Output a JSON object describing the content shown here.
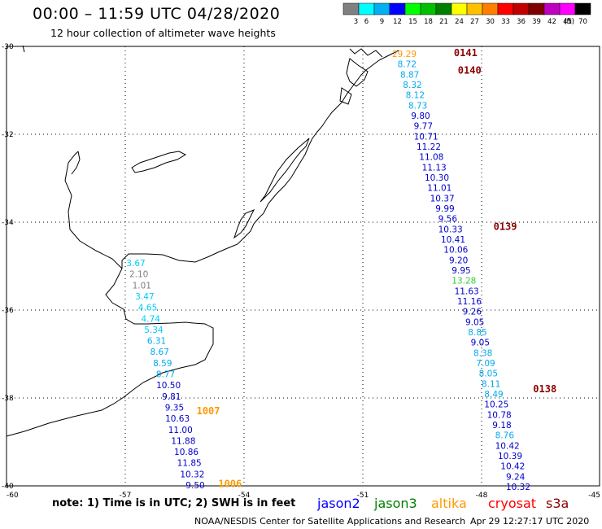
{
  "header": {
    "title": "00:00 – 11:59 UTC 04/28/2020",
    "subtitle": "12 hour collection of altimeter wave heights"
  },
  "scale": {
    "unit": "(ft)",
    "bins": [
      {
        "label": "3",
        "color": "#808080"
      },
      {
        "label": "6",
        "color": "#00ffff"
      },
      {
        "label": "9",
        "color": "#00b0f0"
      },
      {
        "label": "12",
        "color": "#0000ff"
      },
      {
        "label": "15",
        "color": "#00ff00"
      },
      {
        "label": "18",
        "color": "#00c000"
      },
      {
        "label": "21",
        "color": "#008000"
      },
      {
        "label": "24",
        "color": "#ffff00"
      },
      {
        "label": "27",
        "color": "#ffc000"
      },
      {
        "label": "30",
        "color": "#ff8000"
      },
      {
        "label": "33",
        "color": "#ff0000"
      },
      {
        "label": "36",
        "color": "#c00000"
      },
      {
        "label": "39",
        "color": "#800000"
      },
      {
        "label": "42",
        "color": "#c000c0"
      },
      {
        "label": "45",
        "color": "#ff00ff"
      },
      {
        "label": "70",
        "color": "#000000"
      }
    ]
  },
  "axes": {
    "lat_labels": [
      "-30",
      "-32",
      "-34",
      "-36",
      "-38",
      "-40"
    ],
    "lon_labels": [
      "-60",
      "-57",
      "-54",
      "-51",
      "-48",
      "-45"
    ]
  },
  "colors": {
    "gray": "#808080",
    "cyan": "#00ccff",
    "skyblue": "#00aaee",
    "blue": "#0000cc",
    "green": "#33cc33",
    "orange": "#ff9900",
    "darkred": "#8b0000",
    "red": "#ff0000"
  },
  "passes": [
    {
      "label": "0141",
      "lon": -48.7,
      "lat": -30.15,
      "color": "darkred"
    },
    {
      "label": "0140",
      "lon": -48.6,
      "lat": -30.55,
      "color": "darkred"
    },
    {
      "label": "0139",
      "lon": -47.7,
      "lat": -34.1,
      "color": "darkred"
    },
    {
      "label": "0138",
      "lon": -46.7,
      "lat": -37.8,
      "color": "darkred"
    },
    {
      "label": "1007",
      "lon": -55.2,
      "lat": -38.3,
      "color": "orange"
    },
    {
      "label": "1006",
      "lon": -54.65,
      "lat": -39.95,
      "color": "orange"
    }
  ],
  "track_a": [
    {
      "v": "3.67",
      "color": "cyan"
    },
    {
      "v": "2.10",
      "color": "gray"
    },
    {
      "v": "1.01",
      "color": "gray"
    },
    {
      "v": "3.47",
      "color": "cyan"
    },
    {
      "v": "4.65",
      "color": "cyan"
    },
    {
      "v": "4.74",
      "color": "cyan"
    },
    {
      "v": "5.34",
      "color": "cyan"
    },
    {
      "v": "6.31",
      "color": "skyblue"
    },
    {
      "v": "8.67",
      "color": "skyblue"
    },
    {
      "v": "8.59",
      "color": "skyblue"
    },
    {
      "v": "8.77",
      "color": "skyblue"
    },
    {
      "v": "10.50",
      "color": "blue"
    },
    {
      "v": "9.81",
      "color": "blue"
    },
    {
      "v": "9.35",
      "color": "blue"
    },
    {
      "v": "10.63",
      "color": "blue"
    },
    {
      "v": "11.00",
      "color": "blue"
    },
    {
      "v": "11.88",
      "color": "blue"
    },
    {
      "v": "10.86",
      "color": "blue"
    },
    {
      "v": "11.85",
      "color": "blue"
    },
    {
      "v": "10.32",
      "color": "blue"
    },
    {
      "v": "9.50",
      "color": "blue"
    }
  ],
  "track_b": [
    {
      "v": "29.29",
      "color": "orange"
    },
    {
      "v": "8.72",
      "color": "skyblue"
    },
    {
      "v": "8.87",
      "color": "skyblue"
    },
    {
      "v": "8.32",
      "color": "skyblue"
    },
    {
      "v": "8.12",
      "color": "skyblue"
    },
    {
      "v": "8.73",
      "color": "skyblue"
    },
    {
      "v": "9.80",
      "color": "blue"
    },
    {
      "v": "9.77",
      "color": "blue"
    },
    {
      "v": "10.71",
      "color": "blue"
    },
    {
      "v": "11.22",
      "color": "blue"
    },
    {
      "v": "11.08",
      "color": "blue"
    },
    {
      "v": "11.13",
      "color": "blue"
    },
    {
      "v": "10.30",
      "color": "blue"
    },
    {
      "v": "11.01",
      "color": "blue"
    },
    {
      "v": "10.37",
      "color": "blue"
    },
    {
      "v": "9.99",
      "color": "blue"
    },
    {
      "v": "9.56",
      "color": "blue"
    },
    {
      "v": "10.33",
      "color": "blue"
    },
    {
      "v": "10.41",
      "color": "blue"
    },
    {
      "v": "10.06",
      "color": "blue"
    },
    {
      "v": "9.20",
      "color": "blue"
    },
    {
      "v": "9.95",
      "color": "blue"
    },
    {
      "v": "13.28",
      "color": "green"
    },
    {
      "v": "11.63",
      "color": "blue"
    },
    {
      "v": "11.16",
      "color": "blue"
    },
    {
      "v": "9.26",
      "color": "blue"
    },
    {
      "v": "9.05",
      "color": "blue"
    },
    {
      "v": "8.85",
      "color": "skyblue"
    },
    {
      "v": "9.05",
      "color": "blue"
    },
    {
      "v": "8.38",
      "color": "skyblue"
    },
    {
      "v": "7.09",
      "color": "skyblue"
    },
    {
      "v": "8.05",
      "color": "skyblue"
    },
    {
      "v": "8.11",
      "color": "skyblue"
    },
    {
      "v": "8.49",
      "color": "skyblue"
    },
    {
      "v": "10.25",
      "color": "blue"
    },
    {
      "v": "10.78",
      "color": "blue"
    },
    {
      "v": "9.18",
      "color": "blue"
    },
    {
      "v": "8.76",
      "color": "skyblue"
    },
    {
      "v": "10.42",
      "color": "blue"
    },
    {
      "v": "10.39",
      "color": "blue"
    },
    {
      "v": "10.42",
      "color": "blue"
    },
    {
      "v": "9.24",
      "color": "blue"
    },
    {
      "v": "10.32",
      "color": "blue"
    }
  ],
  "footer": {
    "note": "note: 1) Time is in UTC; 2) SWH is in feet",
    "satellites": [
      {
        "name": "jason2",
        "color": "#0000ff"
      },
      {
        "name": "jason3",
        "color": "#008000"
      },
      {
        "name": "altika",
        "color": "#ff9900"
      },
      {
        "name": "cryosat",
        "color": "#ff0000"
      },
      {
        "name": "s3a",
        "color": "#8b0000"
      }
    ],
    "credit": "NOAA/NESDIS Center for Satellite Applications and Research",
    "timestamp": "Apr 29 12:27:17 UTC 2020"
  }
}
